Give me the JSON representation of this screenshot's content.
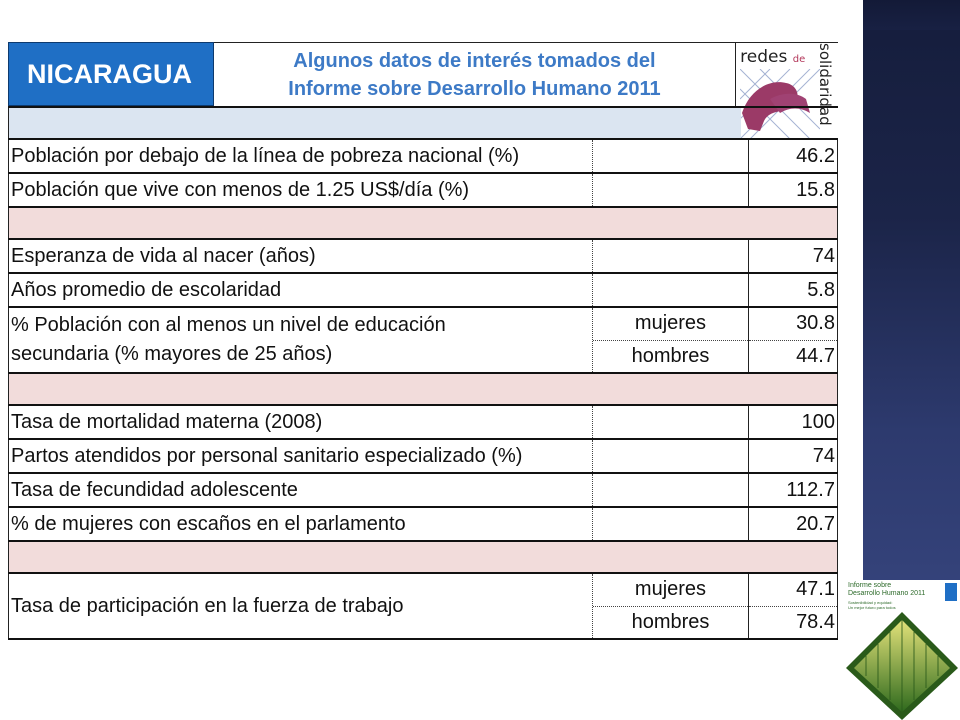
{
  "header": {
    "country": "NICARAGUA",
    "title_line1": "Algunos datos de interés tomados del",
    "title_line2": "Informe sobre Desarrollo Humano 2011"
  },
  "logo": {
    "word1": "redes",
    "word2": "de",
    "word3": "solidaridad"
  },
  "rows": [
    {
      "label": "Población por debajo de la línea de pobreza nacional (%)",
      "value": "46.2"
    },
    {
      "label": "Población que vive con menos de 1.25 US$/día (%)",
      "value": "15.8"
    },
    {
      "label": "Esperanza de vida al nacer (años)",
      "value": "74"
    },
    {
      "label": "Años promedio de escolaridad",
      "value": "5.8"
    },
    {
      "label_line1": "% Población con al menos un nivel de educación",
      "label_line2": "secundaria (% mayores de 25 años)",
      "sub1": "mujeres",
      "val1": "30.8",
      "sub2": "hombres",
      "val2": "44.7"
    },
    {
      "label": "Tasa de mortalidad materna (2008)",
      "value": "100"
    },
    {
      "label": "Partos atendidos por personal sanitario especializado (%)",
      "value": "74"
    },
    {
      "label": "Tasa de fecundidad adolescente",
      "value": "112.7"
    },
    {
      "label": "% de mujeres con escaños en el parlamento",
      "value": "20.7"
    },
    {
      "label": "Tasa de participación en la fuerza de trabajo",
      "sub1": "mujeres",
      "val1": "47.1",
      "sub2": "hombres",
      "val2": "78.4"
    }
  ],
  "cover": {
    "title_line1": "Informe sobre",
    "title_line2": "Desarrollo Humano 2011",
    "subtitle_line1": "Sostenibilidad y equidad:",
    "subtitle_line2": "Un mejor futuro para todos"
  },
  "colors": {
    "country_bg": "#1f6fc5",
    "title_text": "#3d7ac6",
    "spacer_blue": "#dbe5f1",
    "spacer_pink": "#f2dcdb",
    "side_strip": "#1b2448"
  }
}
